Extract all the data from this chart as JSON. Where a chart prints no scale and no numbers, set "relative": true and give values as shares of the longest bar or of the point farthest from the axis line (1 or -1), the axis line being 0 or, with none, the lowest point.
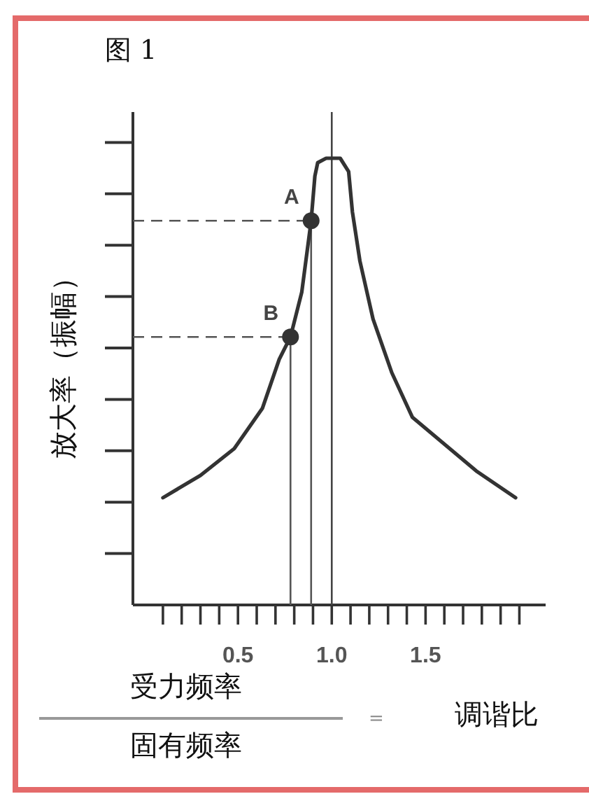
{
  "chart_data": {
    "type": "line",
    "title": "图 1",
    "ylabel": "放大率（振幅）",
    "relative": true,
    "annotations": [
      "受力频率",
      "固有频率",
      "=",
      "调谐比",
      {
        "text": "A",
        "x": 0.89,
        "y": 0.86
      },
      {
        "text": "B",
        "x": 0.78,
        "y": 0.6
      }
    ],
    "xlim": [
      -0.06,
      2.14
    ],
    "xticks": [
      {
        "value": 0.1,
        "label": null
      },
      {
        "value": 0.2,
        "label": null
      },
      {
        "value": 0.3,
        "label": null
      },
      {
        "value": 0.4,
        "label": null
      },
      {
        "value": 0.5,
        "label": "0.5"
      },
      {
        "value": 0.6,
        "label": null
      },
      {
        "value": 0.7,
        "label": null
      },
      {
        "value": 0.8,
        "label": null
      },
      {
        "value": 0.9,
        "label": null
      },
      {
        "value": 1.0,
        "label": "1.0"
      },
      {
        "value": 1.1,
        "label": null
      },
      {
        "value": 1.2,
        "label": null
      },
      {
        "value": 1.3,
        "label": null
      },
      {
        "value": 1.4,
        "label": null
      },
      {
        "value": 1.5,
        "label": "1.5"
      },
      {
        "value": 1.6,
        "label": null
      },
      {
        "value": 1.7,
        "label": null
      },
      {
        "value": 1.8,
        "label": null
      },
      {
        "value": 1.9,
        "label": null
      },
      {
        "value": 2.0,
        "label": null
      }
    ],
    "series": [
      {
        "type": "line",
        "color": "#333333",
        "x": [
          0.1,
          0.3,
          0.48,
          0.63,
          0.72,
          0.78,
          0.84,
          0.89,
          0.91,
          0.925,
          0.97,
          1.0,
          1.045,
          1.09,
          1.11,
          1.15,
          1.22,
          1.32,
          1.43,
          1.6,
          1.77,
          1.98
        ],
        "values": [
          0.24,
          0.29,
          0.35,
          0.44,
          0.55,
          0.6,
          0.7,
          0.86,
          0.96,
          0.99,
          1.0,
          1.0,
          1.0,
          0.97,
          0.88,
          0.77,
          0.64,
          0.52,
          0.42,
          0.36,
          0.3,
          0.24
        ]
      },
      {
        "type": "scatter",
        "color": "#333333",
        "marker": "circle",
        "x": [
          0.78,
          0.89
        ],
        "values": [
          0.6,
          0.86
        ]
      }
    ],
    "ref_lines": [
      {
        "axis": "x",
        "value": 1.0,
        "color": "#444444"
      },
      {
        "axis": "x",
        "value": 0.78,
        "color": "#555555"
      },
      {
        "axis": "x",
        "value": 0.89,
        "color": "#555555"
      }
    ],
    "legend": false,
    "grid": false
  }
}
